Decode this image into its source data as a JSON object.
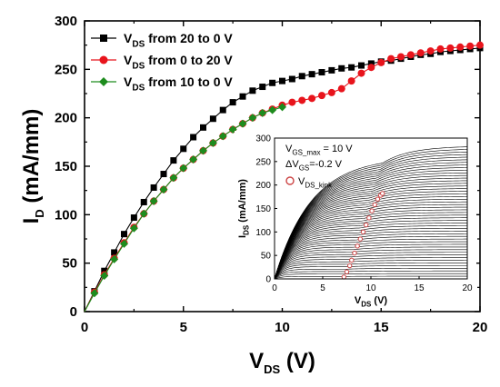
{
  "chart_data": [
    {
      "type": "scatter",
      "xlabel": {
        "main": "V",
        "sub": "DS",
        "unit": " (V)"
      },
      "ylabel": {
        "main": "I",
        "sub": "D",
        "unit": " (mA/mm)"
      },
      "xlim": [
        0,
        20
      ],
      "ylim": [
        0,
        300
      ],
      "xticks": [
        0,
        5,
        10,
        15,
        20
      ],
      "yticks": [
        0,
        50,
        100,
        150,
        200,
        250,
        300
      ],
      "legend_position": "top-left",
      "series": [
        {
          "name": {
            "main": "V",
            "sub": "DS",
            "rest": " from 20 to 0 V"
          },
          "color": "#000000",
          "marker": "square",
          "x": [
            0,
            0.5,
            1,
            1.5,
            2,
            2.5,
            3,
            3.5,
            4,
            4.5,
            5,
            5.5,
            6,
            6.5,
            7,
            7.5,
            8,
            8.5,
            9,
            9.5,
            10,
            10.5,
            11,
            11.5,
            12,
            12.5,
            13,
            13.5,
            14,
            14.5,
            15,
            15.5,
            16,
            16.5,
            17,
            17.5,
            18,
            18.5,
            19,
            19.5,
            20
          ],
          "y": [
            0,
            21,
            42,
            61,
            80,
            97,
            113,
            128,
            142,
            156,
            168,
            180,
            190,
            199,
            208,
            216,
            222,
            228,
            232,
            236,
            238,
            240,
            243,
            245,
            247,
            249,
            251,
            252,
            254,
            256,
            258,
            259,
            261,
            263,
            265,
            266,
            268,
            269,
            270,
            271,
            272
          ]
        },
        {
          "name": {
            "main": "V",
            "sub": "DS",
            "rest": " from 0 to 20 V"
          },
          "color": "#e8141c",
          "marker": "circle",
          "x": [
            0,
            0.5,
            1,
            1.5,
            2,
            2.5,
            3,
            3.5,
            4,
            4.5,
            5,
            5.5,
            6,
            6.5,
            7,
            7.5,
            8,
            8.5,
            9,
            9.5,
            10,
            10.5,
            11,
            11.5,
            12,
            12.5,
            13,
            13.5,
            14,
            14.5,
            15,
            15.5,
            16,
            16.5,
            17,
            17.5,
            18,
            18.5,
            19,
            19.5,
            20
          ],
          "y": [
            0,
            20,
            38,
            55,
            71,
            87,
            101,
            114,
            126,
            138,
            148,
            157,
            166,
            174,
            181,
            188,
            194,
            200,
            205,
            209,
            213,
            216,
            218,
            220,
            223,
            226,
            230,
            238,
            246,
            252,
            257,
            261,
            263,
            265,
            267,
            269,
            271,
            272,
            273,
            274,
            275
          ]
        },
        {
          "name": {
            "main": "V",
            "sub": "DS",
            "rest": " from 10 to 0 V"
          },
          "color": "#1e8c1e",
          "marker": "diamond",
          "x": [
            0,
            0.5,
            1,
            1.5,
            2,
            2.5,
            3,
            3.5,
            4,
            4.5,
            5,
            5.5,
            6,
            6.5,
            7,
            7.5,
            8,
            8.5,
            9,
            9.5,
            10
          ],
          "y": [
            0,
            19,
            37,
            54,
            70,
            86,
            101,
            114,
            126,
            138,
            148,
            157,
            166,
            174,
            181,
            188,
            194,
            200,
            205,
            208,
            211
          ]
        }
      ]
    },
    {
      "type": "line",
      "xlabel": {
        "main": "V",
        "sub": "DS",
        "unit": " (V)"
      },
      "ylabel": {
        "main": "I",
        "sub": "DS",
        "unit": " (mA/mm)"
      },
      "xlim": [
        0,
        20
      ],
      "ylim": [
        0,
        300
      ],
      "xticks": [
        0,
        5,
        10,
        15,
        20
      ],
      "yticks": [
        0,
        50,
        100,
        150,
        200,
        250,
        300
      ],
      "annotations": [
        {
          "main": "V",
          "sub": "GS_max",
          "rest": " = 10 V"
        },
        {
          "main": "ΔV",
          "sub": "GS",
          "rest": "=-0.2 V"
        }
      ],
      "legend": {
        "main": "V",
        "sub": "DS_kink"
      },
      "curve_family": {
        "count": 51,
        "isat_max": 260,
        "isat_min": 0,
        "vk_start": 11.2,
        "vk_end": 7.2,
        "line_color": "#000000"
      },
      "kink_points": {
        "color": "#cc4444",
        "x": [
          7.2,
          7.5,
          7.8,
          8.0,
          8.3,
          8.6,
          8.9,
          9.2,
          9.5,
          9.8,
          10.1,
          10.4,
          10.7,
          11.0,
          11.2
        ],
        "y": [
          4,
          15,
          28,
          40,
          55,
          70,
          85,
          100,
          115,
          130,
          145,
          158,
          170,
          178,
          182
        ]
      }
    }
  ]
}
